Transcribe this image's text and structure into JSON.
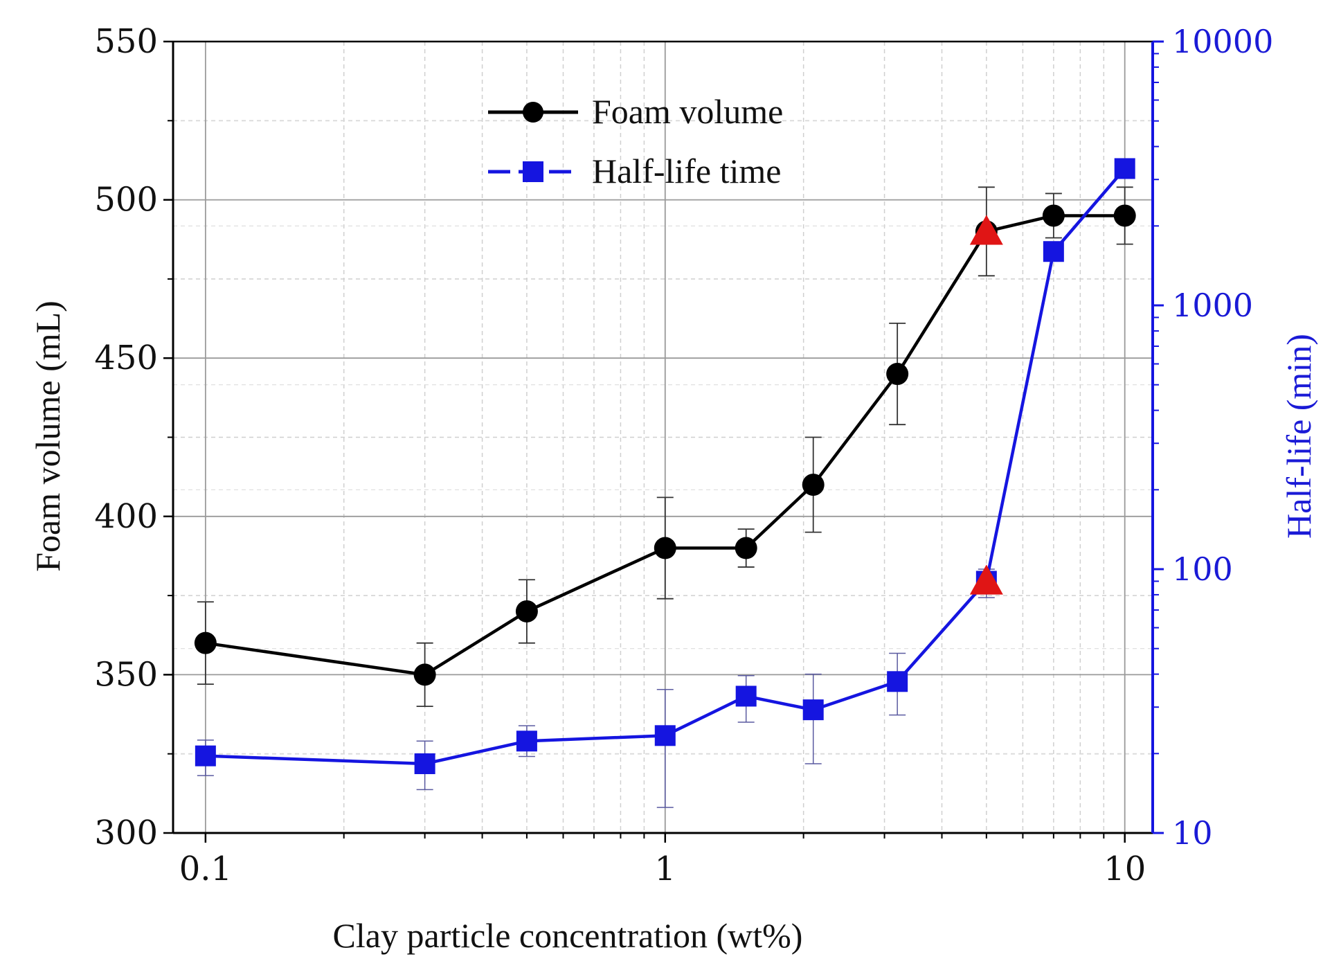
{
  "chart_data": {
    "type": "line",
    "xlabel": "Clay particle concentration (wt%)",
    "ylabel": "Foam volume (mL)",
    "y2label": "Half-life (min)",
    "xscale": "log",
    "xlim": [
      0.085,
      11.5
    ],
    "ylim": [
      300,
      550
    ],
    "y2scale": "log",
    "y2lim": [
      10,
      10000
    ],
    "x_ticks": [
      {
        "v": 0.1,
        "label": "0.1"
      },
      {
        "v": 1,
        "label": "1"
      },
      {
        "v": 10,
        "label": "10"
      }
    ],
    "y_ticks": [
      {
        "v": 300,
        "label": "300"
      },
      {
        "v": 350,
        "label": "350"
      },
      {
        "v": 400,
        "label": "400"
      },
      {
        "v": 450,
        "label": "450"
      },
      {
        "v": 500,
        "label": "500"
      },
      {
        "v": 550,
        "label": "550"
      }
    ],
    "y2_ticks": [
      {
        "v": 10,
        "label": "10"
      },
      {
        "v": 100,
        "label": "100"
      },
      {
        "v": 1000,
        "label": "1000"
      },
      {
        "v": 10000,
        "label": "10000"
      }
    ],
    "grid": true,
    "legend_position": "top-center",
    "series": [
      {
        "name": "Foam volume",
        "axis": "left",
        "color": "#000000",
        "marker": "circle",
        "x": [
          0.1,
          0.3,
          0.5,
          1,
          1.5,
          2.1,
          3.2,
          5,
          7,
          10
        ],
        "y": [
          360,
          350,
          370,
          390,
          390,
          410,
          445,
          490,
          495,
          495
        ],
        "err": [
          13,
          10,
          10,
          16,
          6,
          15,
          16,
          14,
          7,
          9
        ]
      },
      {
        "name": "Half-life time",
        "axis": "right",
        "color": "#1515e0",
        "marker": "square",
        "x": [
          0.1,
          0.3,
          0.5,
          1,
          1.5,
          2.1,
          3.2,
          5,
          7,
          10
        ],
        "y": [
          19.6,
          18.3,
          22.3,
          23.4,
          33,
          29.3,
          37.5,
          90,
          1600,
          3300
        ],
        "err_low": [
          16.5,
          14.6,
          19.5,
          12.5,
          26.3,
          18.3,
          28,
          78,
          null,
          null
        ],
        "err_high": [
          22.5,
          22.3,
          25.5,
          35,
          39.5,
          40,
          48,
          100,
          null,
          null
        ]
      }
    ],
    "highlights": [
      {
        "axis": "left",
        "x": 5,
        "y": 490,
        "marker": "triangle",
        "color": "#e01515"
      },
      {
        "axis": "right",
        "x": 5,
        "y": 90,
        "marker": "triangle",
        "color": "#e01515"
      }
    ]
  }
}
